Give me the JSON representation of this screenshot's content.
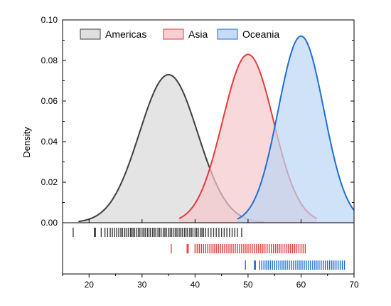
{
  "chart_data": {
    "type": "area",
    "subtype": "kernel-density-with-rug",
    "title": "",
    "xlabel": "",
    "ylabel": "Density",
    "xlim": [
      15,
      70
    ],
    "ylim": [
      0,
      0.1
    ],
    "x_ticks": [
      20,
      30,
      40,
      50,
      60,
      70
    ],
    "y_ticks": [
      0.0,
      0.02,
      0.04,
      0.06,
      0.08,
      0.1
    ],
    "x_tick_labels": [
      "20",
      "30",
      "40",
      "50",
      "60",
      "70"
    ],
    "y_tick_labels": [
      "0.00",
      "0.02",
      "0.04",
      "0.06",
      "0.08",
      "0.10"
    ],
    "grid": false,
    "legend_position": "top",
    "series": [
      {
        "name": "Americas",
        "line_color": "#3f3f3f",
        "fill_color": "#d9d9d9",
        "peak_x": 35,
        "peak_density": 0.073,
        "spread_sd": 5.5,
        "curve_range": [
          18,
          53
        ],
        "rug": [
          17,
          21,
          21.2,
          22.3,
          23,
          23.5,
          24,
          24.4,
          24.8,
          25.2,
          25.6,
          26,
          26.3,
          26.7,
          27,
          27.4,
          27.8,
          28,
          28.3,
          28.6,
          29,
          29.3,
          29.6,
          30,
          30.3,
          30.6,
          31,
          31.3,
          31.6,
          32,
          32.3,
          32.6,
          33,
          33.3,
          33.6,
          34,
          34.3,
          34.6,
          35,
          35.3,
          35.6,
          36,
          36.3,
          36.6,
          37,
          37.3,
          37.6,
          38,
          38.3,
          38.6,
          39,
          39.3,
          39.6,
          40,
          40.3,
          40.6,
          41,
          41.3,
          41.6,
          42,
          42.5,
          43,
          43.5,
          44,
          44.5,
          45,
          45.5,
          46,
          46.5,
          47,
          47.5,
          48,
          48.8
        ]
      },
      {
        "name": "Asia",
        "line_color": "#e63a3a",
        "fill_color": "#f7c8cc",
        "peak_x": 50,
        "peak_density": 0.083,
        "spread_sd": 4.8,
        "curve_range": [
          37,
          63
        ],
        "rug": [
          35.5,
          38.5,
          38.7,
          40,
          40.4,
          40.8,
          41.2,
          41.6,
          42,
          42.4,
          42.8,
          43.2,
          43.6,
          44,
          44.4,
          44.8,
          45.2,
          45.6,
          46,
          46.4,
          46.8,
          47.2,
          47.6,
          48,
          48.4,
          48.8,
          49.2,
          49.6,
          50,
          50.4,
          50.8,
          51.2,
          51.6,
          52,
          52.4,
          52.8,
          53.2,
          53.6,
          54,
          54.4,
          54.8,
          55.2,
          55.6,
          56,
          56.4,
          56.8,
          57.2,
          57.6,
          58,
          58.4,
          58.8,
          59.2,
          59.6,
          60,
          60.4,
          60.8
        ]
      },
      {
        "name": "Oceania",
        "line_color": "#1f6fd1",
        "fill_color": "#bcd5f3",
        "peak_x": 60,
        "peak_density": 0.092,
        "spread_sd": 4.3,
        "curve_range": [
          48,
          70
        ],
        "rug": [
          49.5,
          51.2,
          51.4,
          52.2,
          52.6,
          53,
          53.4,
          53.8,
          54.2,
          54.6,
          55,
          55.4,
          55.8,
          56.2,
          56.6,
          57,
          57.4,
          57.8,
          58.2,
          58.6,
          59,
          59.4,
          59.8,
          60.2,
          60.6,
          61,
          61.4,
          61.8,
          62.2,
          62.6,
          63,
          63.4,
          63.8,
          64.2,
          64.6,
          65,
          65.4,
          65.8,
          66.2,
          66.6,
          67,
          67.4,
          67.8,
          68.2
        ]
      }
    ]
  }
}
